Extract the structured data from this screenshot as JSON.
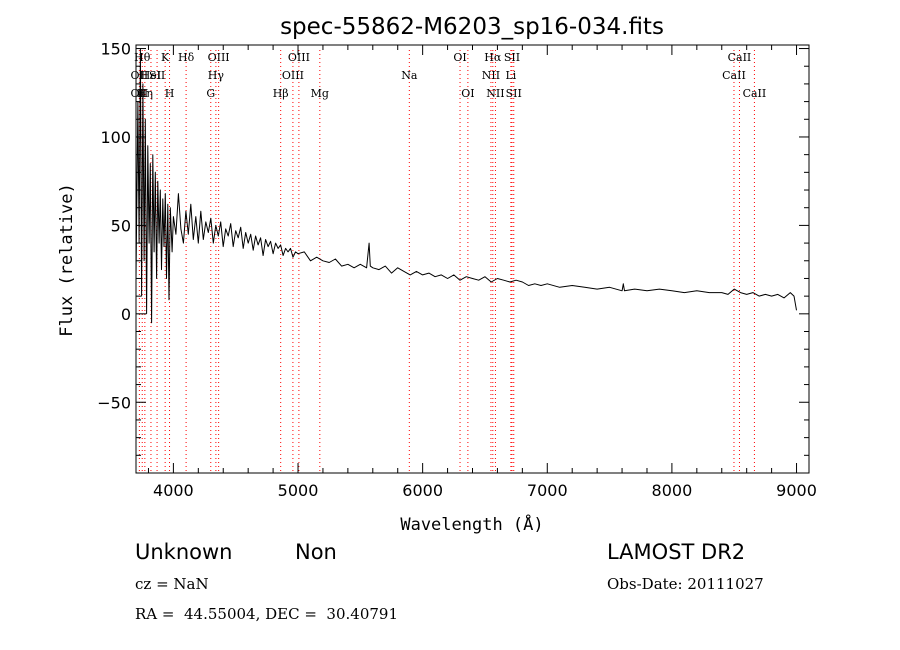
{
  "chart_data": {
    "type": "line",
    "title": "spec-55862-M6203_sp16-034.fits",
    "xlabel": "Wavelength (Å)",
    "ylabel": "Flux (relative)",
    "xlim": [
      3700,
      9100
    ],
    "ylim": [
      -90,
      152
    ],
    "x_ticks": [
      4000,
      5000,
      6000,
      7000,
      8000,
      9000
    ],
    "y_ticks": [
      -50,
      0,
      50,
      100,
      150
    ],
    "series": [
      {
        "points": [
          [
            3700,
            20
          ],
          [
            3715,
            120
          ],
          [
            3725,
            40
          ],
          [
            3735,
            150
          ],
          [
            3745,
            10
          ],
          [
            3755,
            130
          ],
          [
            3765,
            30
          ],
          [
            3775,
            110
          ],
          [
            3785,
            0
          ],
          [
            3795,
            95
          ],
          [
            3805,
            40
          ],
          [
            3815,
            85
          ],
          [
            3825,
            -5
          ],
          [
            3835,
            90
          ],
          [
            3845,
            35
          ],
          [
            3855,
            80
          ],
          [
            3865,
            20
          ],
          [
            3875,
            75
          ],
          [
            3885,
            40
          ],
          [
            3895,
            70
          ],
          [
            3905,
            25
          ],
          [
            3915,
            65
          ],
          [
            3925,
            38
          ],
          [
            3935,
            68
          ],
          [
            3945,
            20
          ],
          [
            3955,
            62
          ],
          [
            3965,
            8
          ],
          [
            3975,
            60
          ],
          [
            3990,
            35
          ],
          [
            4000,
            55
          ],
          [
            4020,
            45
          ],
          [
            4040,
            68
          ],
          [
            4060,
            48
          ],
          [
            4080,
            40
          ],
          [
            4100,
            58
          ],
          [
            4120,
            45
          ],
          [
            4140,
            62
          ],
          [
            4160,
            42
          ],
          [
            4180,
            55
          ],
          [
            4200,
            40
          ],
          [
            4220,
            58
          ],
          [
            4240,
            42
          ],
          [
            4260,
            52
          ],
          [
            4280,
            46
          ],
          [
            4300,
            54
          ],
          [
            4320,
            40
          ],
          [
            4340,
            50
          ],
          [
            4360,
            44
          ],
          [
            4380,
            52
          ],
          [
            4400,
            38
          ],
          [
            4420,
            48
          ],
          [
            4440,
            44
          ],
          [
            4460,
            51
          ],
          [
            4480,
            38
          ],
          [
            4500,
            47
          ],
          [
            4520,
            43
          ],
          [
            4540,
            49
          ],
          [
            4560,
            37
          ],
          [
            4580,
            46
          ],
          [
            4600,
            40
          ],
          [
            4620,
            45
          ],
          [
            4640,
            36
          ],
          [
            4660,
            44
          ],
          [
            4680,
            39
          ],
          [
            4700,
            43
          ],
          [
            4720,
            33
          ],
          [
            4740,
            42
          ],
          [
            4760,
            38
          ],
          [
            4780,
            41
          ],
          [
            4800,
            34
          ],
          [
            4820,
            40
          ],
          [
            4840,
            37
          ],
          [
            4860,
            39
          ],
          [
            4880,
            33
          ],
          [
            4900,
            37
          ],
          [
            4920,
            35
          ],
          [
            4940,
            37
          ],
          [
            4960,
            32
          ],
          [
            4980,
            35
          ],
          [
            5000,
            34
          ],
          [
            5050,
            35
          ],
          [
            5100,
            30
          ],
          [
            5150,
            32
          ],
          [
            5200,
            30
          ],
          [
            5250,
            29
          ],
          [
            5300,
            31
          ],
          [
            5350,
            27
          ],
          [
            5400,
            28
          ],
          [
            5450,
            26
          ],
          [
            5500,
            28
          ],
          [
            5550,
            26
          ],
          [
            5570,
            40
          ],
          [
            5580,
            27
          ],
          [
            5600,
            26
          ],
          [
            5650,
            25
          ],
          [
            5700,
            27
          ],
          [
            5750,
            23
          ],
          [
            5800,
            26
          ],
          [
            5850,
            24
          ],
          [
            5900,
            22
          ],
          [
            5950,
            24
          ],
          [
            6000,
            22
          ],
          [
            6050,
            23
          ],
          [
            6100,
            21
          ],
          [
            6150,
            22
          ],
          [
            6200,
            20
          ],
          [
            6250,
            22
          ],
          [
            6300,
            19
          ],
          [
            6350,
            21
          ],
          [
            6400,
            20
          ],
          [
            6450,
            19
          ],
          [
            6500,
            21
          ],
          [
            6550,
            18
          ],
          [
            6600,
            20
          ],
          [
            6650,
            19
          ],
          [
            6700,
            18
          ],
          [
            6750,
            19
          ],
          [
            6800,
            18
          ],
          [
            6850,
            16
          ],
          [
            6900,
            17
          ],
          [
            6950,
            16
          ],
          [
            7000,
            17
          ],
          [
            7100,
            15
          ],
          [
            7200,
            16
          ],
          [
            7300,
            15
          ],
          [
            7400,
            14
          ],
          [
            7500,
            15
          ],
          [
            7600,
            13
          ],
          [
            7610,
            17
          ],
          [
            7620,
            13
          ],
          [
            7700,
            14
          ],
          [
            7800,
            13
          ],
          [
            7900,
            14
          ],
          [
            8000,
            13
          ],
          [
            8100,
            12
          ],
          [
            8200,
            13
          ],
          [
            8300,
            12
          ],
          [
            8400,
            12
          ],
          [
            8450,
            11
          ],
          [
            8500,
            14
          ],
          [
            8550,
            12
          ],
          [
            8600,
            11
          ],
          [
            8650,
            12
          ],
          [
            8700,
            10
          ],
          [
            8750,
            11
          ],
          [
            8800,
            10
          ],
          [
            8850,
            11
          ],
          [
            8900,
            9
          ],
          [
            8950,
            12
          ],
          [
            8980,
            10
          ],
          [
            9000,
            2
          ]
        ]
      }
    ],
    "lines": [
      {
        "x": 3727,
        "rows": [
          {
            "label": "OII",
            "row": 1
          },
          {
            "label": "OII",
            "row": 2
          }
        ]
      },
      {
        "x": 3750,
        "rows": [
          {
            "label": "Hθ",
            "row": 0
          }
        ]
      },
      {
        "x": 3771,
        "rows": [
          {
            "label": "Hη",
            "row": 2
          }
        ]
      },
      {
        "x": 3820,
        "rows": [
          {
            "label": "HeI",
            "row": 1
          }
        ]
      },
      {
        "x": 3869,
        "rows": [
          {
            "label": "SII",
            "row": 1
          }
        ]
      },
      {
        "x": 3934,
        "rows": [
          {
            "label": "K",
            "row": 0
          }
        ]
      },
      {
        "x": 3969,
        "rows": [
          {
            "label": "H",
            "row": 2
          }
        ]
      },
      {
        "x": 4102,
        "rows": [
          {
            "label": "Hδ",
            "row": 0
          }
        ]
      },
      {
        "x": 4300,
        "rows": [
          {
            "label": "G",
            "row": 2
          }
        ]
      },
      {
        "x": 4341,
        "rows": [
          {
            "label": "Hγ",
            "row": 1
          }
        ]
      },
      {
        "x": 4363,
        "rows": [
          {
            "label": "OIII",
            "row": 0
          }
        ]
      },
      {
        "x": 4861,
        "rows": [
          {
            "label": "Hβ",
            "row": 2
          }
        ]
      },
      {
        "x": 4959,
        "rows": [
          {
            "label": "OIII",
            "row": 1
          }
        ]
      },
      {
        "x": 5007,
        "rows": [
          {
            "label": "OIII",
            "row": 0
          }
        ]
      },
      {
        "x": 5175,
        "rows": [
          {
            "label": "Mg",
            "row": 2
          }
        ]
      },
      {
        "x": 5893,
        "rows": [
          {
            "label": "Na",
            "row": 1
          }
        ]
      },
      {
        "x": 6300,
        "rows": [
          {
            "label": "OI",
            "row": 0
          }
        ]
      },
      {
        "x": 6363,
        "rows": [
          {
            "label": "OI",
            "row": 2
          }
        ]
      },
      {
        "x": 6548,
        "rows": [
          {
            "label": "NII",
            "row": 1
          }
        ]
      },
      {
        "x": 6563,
        "rows": [
          {
            "label": "Hα",
            "row": 0
          }
        ]
      },
      {
        "x": 6584,
        "rows": [
          {
            "label": "NII",
            "row": 2
          }
        ]
      },
      {
        "x": 6708,
        "rows": [
          {
            "label": "Li",
            "row": 1
          }
        ]
      },
      {
        "x": 6717,
        "rows": [
          {
            "label": "SII",
            "row": 0
          }
        ]
      },
      {
        "x": 6731,
        "rows": [
          {
            "label": "SII",
            "row": 2
          }
        ]
      },
      {
        "x": 8498,
        "rows": [
          {
            "label": "CaII",
            "row": 1
          }
        ]
      },
      {
        "x": 8542,
        "rows": [
          {
            "label": "CaII",
            "row": 0
          }
        ]
      },
      {
        "x": 8662,
        "rows": [
          {
            "label": "CaII",
            "row": 2
          }
        ]
      }
    ],
    "grid": false
  },
  "info": {
    "classification": "Unknown",
    "subclass": "Non",
    "survey": "LAMOST DR2",
    "cz": "cz = NaN",
    "obs_date": "Obs-Date: 20111027",
    "coords": "RA =  44.55004, DEC =  30.40791"
  },
  "colors": {
    "spectrum": "#000000",
    "line_markers": "#ff0000",
    "axes": "#000000"
  }
}
